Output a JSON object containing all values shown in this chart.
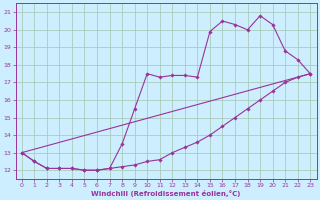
{
  "xlabel": "Windchill (Refroidissement éolien,°C)",
  "ylabel": "",
  "bg_color": "#cceeff",
  "grid_color": "#aaccbb",
  "line_color": "#993399",
  "xlim": [
    -0.5,
    23.5
  ],
  "ylim": [
    11.5,
    21.5
  ],
  "xticks": [
    0,
    1,
    2,
    3,
    4,
    5,
    6,
    7,
    8,
    9,
    10,
    11,
    12,
    13,
    14,
    15,
    16,
    17,
    18,
    19,
    20,
    21,
    22,
    23
  ],
  "yticks": [
    12,
    13,
    14,
    15,
    16,
    17,
    18,
    19,
    20,
    21
  ],
  "lines": [
    {
      "x": [
        0,
        1,
        2,
        3,
        4,
        5,
        6,
        7,
        8,
        9,
        10,
        11,
        12,
        13,
        14,
        15,
        16,
        17,
        18,
        19,
        20,
        21,
        22,
        23
      ],
      "y": [
        13.0,
        12.5,
        12.1,
        12.1,
        12.1,
        12.0,
        12.0,
        12.1,
        12.2,
        12.3,
        12.5,
        12.6,
        13.0,
        13.3,
        13.6,
        14.0,
        14.5,
        15.0,
        15.5,
        16.0,
        16.5,
        17.0,
        17.3,
        17.5
      ]
    },
    {
      "x": [
        0,
        1,
        2,
        3,
        4,
        5,
        6,
        7,
        8,
        9,
        10,
        11,
        12,
        13,
        14,
        15,
        16,
        17,
        18,
        19,
        20,
        21,
        22,
        23
      ],
      "y": [
        13.0,
        12.5,
        12.1,
        12.1,
        12.1,
        12.0,
        12.0,
        12.1,
        13.5,
        15.5,
        17.5,
        17.3,
        17.4,
        17.4,
        17.3,
        19.9,
        20.5,
        20.3,
        20.0,
        20.8,
        20.3,
        18.8,
        18.3,
        17.5
      ]
    },
    {
      "x": [
        0,
        23
      ],
      "y": [
        13.0,
        17.5
      ]
    }
  ]
}
